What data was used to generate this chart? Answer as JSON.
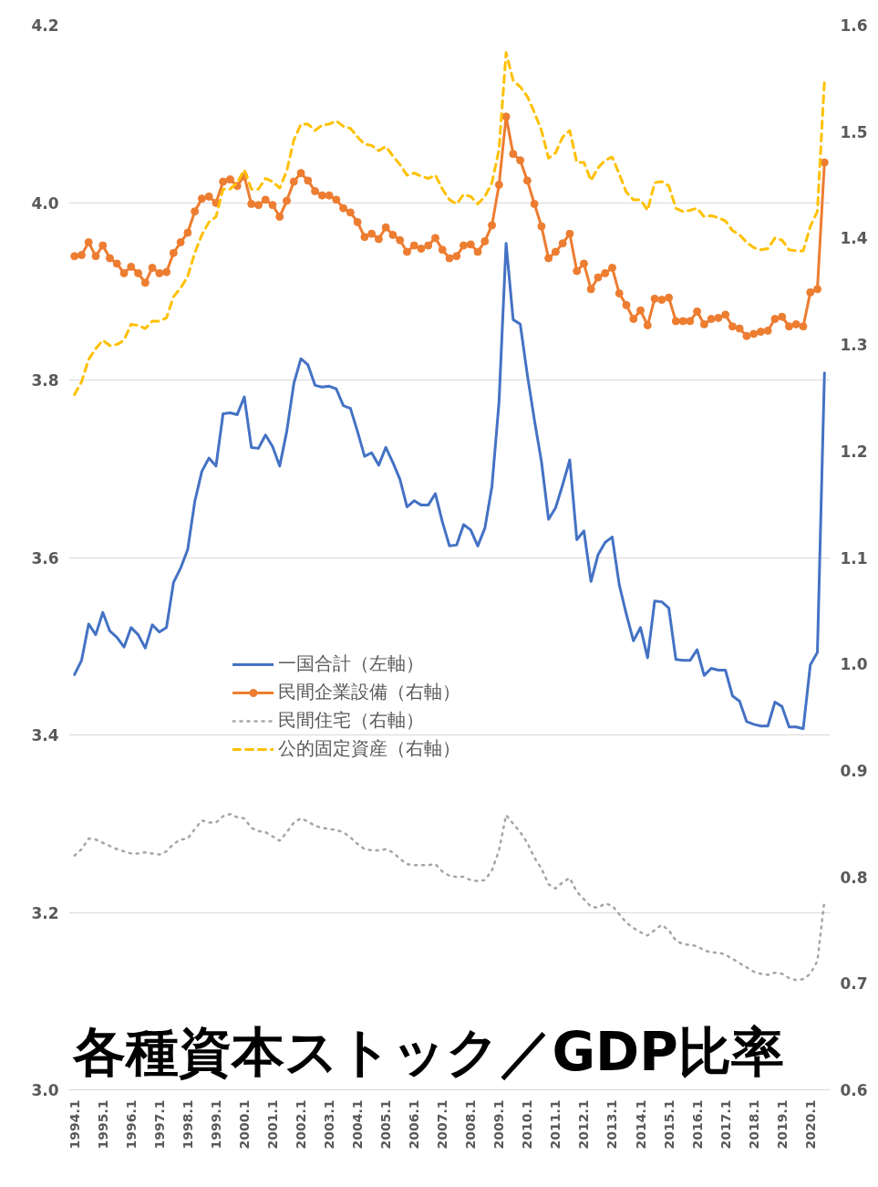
{
  "chart_data": {
    "type": "line",
    "title": "各種資本ストック／GDP比率",
    "categories": [
      "1994.1",
      null,
      null,
      null,
      "1995.1",
      null,
      null,
      null,
      "1996.1",
      null,
      null,
      null,
      "1997.1",
      null,
      null,
      null,
      "1998.1",
      null,
      null,
      null,
      "1999.1",
      null,
      null,
      null,
      "2000.1",
      null,
      null,
      null,
      "2001.1",
      null,
      null,
      null,
      "2002.1",
      null,
      null,
      null,
      "2003.1",
      null,
      null,
      null,
      "2004.1",
      null,
      null,
      null,
      "2005.1",
      null,
      null,
      null,
      "2006.1",
      null,
      null,
      null,
      "2007.1",
      null,
      null,
      null,
      "2008.1",
      null,
      null,
      null,
      "2009.1",
      null,
      null,
      null,
      "2010.1",
      null,
      null,
      null,
      "2011.1",
      null,
      null,
      null,
      "2012.1",
      null,
      null,
      null,
      "2013.1",
      null,
      null,
      null,
      "2014.1",
      null,
      null,
      null,
      "2015.1",
      null,
      null,
      null,
      "2016.1",
      null,
      null,
      null,
      "2017.1",
      null,
      null,
      null,
      "2018.1",
      null,
      null,
      null,
      "2019.1",
      null,
      null,
      null,
      "2020.1",
      null,
      null
    ],
    "series": [
      {
        "name": "一国合計（左軸）",
        "color": "#4472c4",
        "axis": "y",
        "marker": "none",
        "line_style": "solid",
        "values": [
          3.468,
          3.484,
          3.525,
          3.513,
          3.538,
          3.517,
          3.51,
          3.499,
          3.521,
          3.513,
          3.498,
          3.524,
          3.516,
          3.521,
          3.572,
          3.588,
          3.609,
          3.663,
          3.697,
          3.712,
          3.703,
          3.762,
          3.763,
          3.761,
          3.781,
          3.724,
          3.723,
          3.738,
          3.725,
          3.703,
          3.742,
          3.796,
          3.824,
          3.817,
          3.794,
          3.792,
          3.793,
          3.79,
          3.771,
          3.768,
          3.742,
          3.714,
          3.718,
          3.704,
          3.724,
          3.707,
          3.688,
          3.657,
          3.664,
          3.659,
          3.659,
          3.672,
          3.64,
          3.613,
          3.614,
          3.637,
          3.631,
          3.613,
          3.633,
          3.68,
          3.775,
          3.954,
          3.868,
          3.863,
          3.806,
          3.755,
          3.708,
          3.643,
          3.656,
          3.682,
          3.71,
          3.62,
          3.63,
          3.573,
          3.603,
          3.617,
          3.623,
          3.569,
          3.536,
          3.506,
          3.521,
          3.487,
          3.551,
          3.55,
          3.543,
          3.485,
          3.484,
          3.484,
          3.496,
          3.467,
          3.475,
          3.473,
          3.473,
          3.444,
          3.438,
          3.415,
          3.412,
          3.41,
          3.41,
          3.437,
          3.432,
          3.409,
          3.409,
          3.407,
          3.479,
          3.493,
          3.808
        ]
      },
      {
        "name": "民間企業設備（右軸）",
        "color": "#ed7d31",
        "axis": "y2",
        "marker": "circle",
        "line_style": "solid",
        "values": [
          1.383,
          1.384,
          1.396,
          1.383,
          1.393,
          1.381,
          1.376,
          1.367,
          1.373,
          1.367,
          1.358,
          1.372,
          1.367,
          1.368,
          1.386,
          1.396,
          1.405,
          1.425,
          1.437,
          1.439,
          1.433,
          1.453,
          1.455,
          1.449,
          1.458,
          1.432,
          1.431,
          1.436,
          1.431,
          1.42,
          1.435,
          1.453,
          1.461,
          1.454,
          1.444,
          1.44,
          1.44,
          1.436,
          1.428,
          1.424,
          1.415,
          1.401,
          1.404,
          1.399,
          1.41,
          1.403,
          1.398,
          1.387,
          1.393,
          1.39,
          1.393,
          1.4,
          1.389,
          1.381,
          1.383,
          1.393,
          1.394,
          1.387,
          1.397,
          1.412,
          1.45,
          1.514,
          1.479,
          1.473,
          1.454,
          1.432,
          1.411,
          1.381,
          1.387,
          1.395,
          1.404,
          1.369,
          1.376,
          1.352,
          1.363,
          1.367,
          1.372,
          1.348,
          1.337,
          1.324,
          1.332,
          1.318,
          1.343,
          1.342,
          1.344,
          1.322,
          1.322,
          1.322,
          1.331,
          1.319,
          1.324,
          1.325,
          1.328,
          1.317,
          1.315,
          1.308,
          1.31,
          1.312,
          1.313,
          1.324,
          1.326,
          1.317,
          1.319,
          1.317,
          1.349,
          1.352,
          1.471
        ]
      },
      {
        "name": "民間住宅（右軸）",
        "color": "#a5a5a5",
        "axis": "y2",
        "marker": "none",
        "line_style": "dotted",
        "values": [
          0.82,
          0.826,
          0.836,
          0.835,
          0.832,
          0.829,
          0.826,
          0.824,
          0.822,
          0.822,
          0.823,
          0.822,
          0.821,
          0.824,
          0.831,
          0.835,
          0.836,
          0.845,
          0.853,
          0.851,
          0.851,
          0.857,
          0.859,
          0.856,
          0.855,
          0.846,
          0.843,
          0.842,
          0.838,
          0.834,
          0.842,
          0.851,
          0.855,
          0.852,
          0.848,
          0.846,
          0.845,
          0.844,
          0.842,
          0.837,
          0.831,
          0.826,
          0.825,
          0.825,
          0.826,
          0.823,
          0.817,
          0.812,
          0.811,
          0.811,
          0.811,
          0.812,
          0.805,
          0.801,
          0.8,
          0.8,
          0.797,
          0.796,
          0.797,
          0.806,
          0.825,
          0.858,
          0.85,
          0.842,
          0.832,
          0.818,
          0.808,
          0.793,
          0.789,
          0.795,
          0.799,
          0.786,
          0.779,
          0.772,
          0.771,
          0.775,
          0.773,
          0.765,
          0.757,
          0.752,
          0.748,
          0.745,
          0.75,
          0.755,
          0.75,
          0.74,
          0.737,
          0.736,
          0.735,
          0.731,
          0.729,
          0.729,
          0.727,
          0.723,
          0.719,
          0.715,
          0.711,
          0.709,
          0.708,
          0.71,
          0.709,
          0.705,
          0.703,
          0.704,
          0.709,
          0.721,
          0.778
        ]
      },
      {
        "name": "公的固定資産（右軸）",
        "color": "#ffc000",
        "axis": "y2",
        "marker": "none",
        "line_style": "dashed",
        "values": [
          1.253,
          1.265,
          1.286,
          1.296,
          1.304,
          1.299,
          1.3,
          1.304,
          1.319,
          1.318,
          1.315,
          1.322,
          1.322,
          1.325,
          1.345,
          1.353,
          1.364,
          1.386,
          1.403,
          1.415,
          1.42,
          1.446,
          1.446,
          1.452,
          1.464,
          1.446,
          1.446,
          1.456,
          1.453,
          1.447,
          1.463,
          1.492,
          1.507,
          1.507,
          1.501,
          1.506,
          1.507,
          1.51,
          1.505,
          1.503,
          1.495,
          1.488,
          1.487,
          1.482,
          1.486,
          1.477,
          1.469,
          1.459,
          1.461,
          1.458,
          1.456,
          1.459,
          1.446,
          1.436,
          1.432,
          1.441,
          1.439,
          1.432,
          1.439,
          1.452,
          1.483,
          1.574,
          1.548,
          1.542,
          1.533,
          1.518,
          1.501,
          1.475,
          1.48,
          1.495,
          1.501,
          1.471,
          1.471,
          1.454,
          1.466,
          1.473,
          1.476,
          1.46,
          1.443,
          1.436,
          1.436,
          1.426,
          1.452,
          1.453,
          1.449,
          1.428,
          1.425,
          1.426,
          1.428,
          1.42,
          1.421,
          1.419,
          1.416,
          1.407,
          1.403,
          1.396,
          1.391,
          1.389,
          1.39,
          1.4,
          1.398,
          1.389,
          1.388,
          1.388,
          1.411,
          1.425,
          1.548
        ]
      }
    ],
    "ylim": [
      3.0,
      4.2
    ],
    "yticks": [
      {
        "value": 3.0,
        "label": "3.0"
      },
      3.2,
      3.4,
      3.6,
      3.8,
      {
        "value": 4.0,
        "label": "4.0"
      },
      4.2
    ],
    "y2lim": [
      0.6,
      1.6
    ],
    "y2ticks": [
      0.6,
      0.7,
      0.8,
      0.9,
      {
        "value": 1.0,
        "label": "1.0"
      },
      1.1,
      1.2,
      1.3,
      1.4,
      1.5,
      1.6
    ],
    "grid": "y",
    "legend": "center"
  }
}
